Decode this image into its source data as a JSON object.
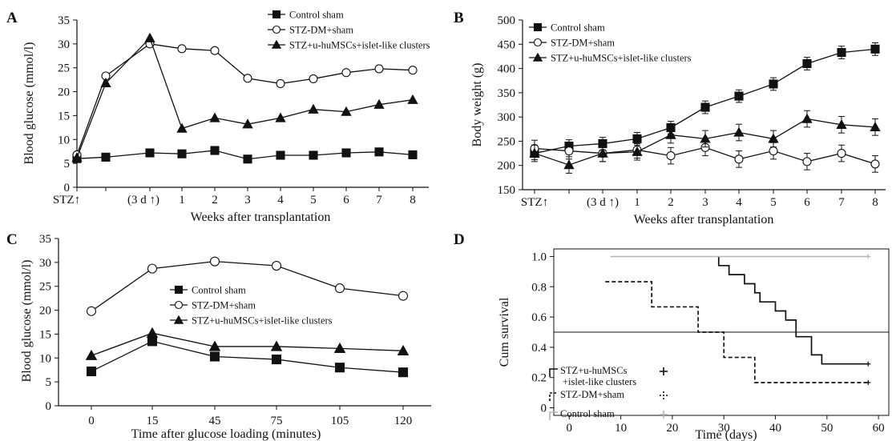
{
  "chart_data": [
    {
      "panel": "A",
      "type": "line",
      "ylabel": "Blood glucose (mmol/l)",
      "xlabel": "Weeks after transplantation",
      "ylim": [
        0,
        35
      ],
      "yticks": [
        0,
        5,
        10,
        15,
        20,
        25,
        30,
        35
      ],
      "categories": [
        "STZ↑",
        "",
        "(3 d ↑)",
        "1",
        "2",
        "3",
        "4",
        "5",
        "6",
        "7",
        "8"
      ],
      "legend_position": "top-right",
      "series": [
        {
          "name": "Control sham",
          "marker": "square",
          "values": [
            6.0,
            6.3,
            7.2,
            7.0,
            7.7,
            5.9,
            6.7,
            6.7,
            7.2,
            7.4,
            6.8
          ]
        },
        {
          "name": "STZ-DM+sham",
          "marker": "circle",
          "values": [
            6.8,
            23.3,
            30.0,
            29.0,
            28.6,
            22.8,
            21.7,
            22.7,
            24.0,
            24.8,
            24.5
          ]
        },
        {
          "name": "STZ+u-huMSCs+islet-like clusters",
          "marker": "triangle",
          "values": [
            6.2,
            21.8,
            31.2,
            12.3,
            14.5,
            13.2,
            14.5,
            16.3,
            15.8,
            17.3,
            18.3
          ]
        }
      ]
    },
    {
      "panel": "B",
      "type": "line",
      "ylabel": "Body weight (g)",
      "xlabel": "Weeks after transplantation",
      "ylim": [
        150,
        500
      ],
      "yticks": [
        150,
        200,
        250,
        300,
        350,
        400,
        450,
        500
      ],
      "categories": [
        "STZ↑",
        "",
        "(3 d ↑)",
        "1",
        "2",
        "3",
        "4",
        "5",
        "6",
        "7",
        "8"
      ],
      "legend_position": "top-left",
      "series": [
        {
          "name": "Control sham",
          "marker": "square",
          "values": [
            225,
            240,
            245,
            255,
            278,
            320,
            343,
            368,
            410,
            433,
            440
          ],
          "error": 13
        },
        {
          "name": "STZ-DM+sham",
          "marker": "circle",
          "values": [
            235,
            230,
            225,
            232,
            220,
            237,
            213,
            230,
            208,
            225,
            203
          ],
          "error": 17
        },
        {
          "name": "STZ+u-huMSCs+islet-like clusters",
          "marker": "triangle",
          "values": [
            225,
            201,
            225,
            228,
            263,
            255,
            268,
            255,
            296,
            284,
            279
          ],
          "error": 17
        }
      ]
    },
    {
      "panel": "C",
      "type": "line",
      "ylabel": "Blood glucose (mmol/l)",
      "xlabel": "Time after glucose loading (minutes)",
      "ylim": [
        0,
        35
      ],
      "yticks": [
        0,
        5,
        10,
        15,
        20,
        25,
        30,
        35
      ],
      "categories": [
        "0",
        "15",
        "45",
        "75",
        "105",
        "120"
      ],
      "legend_position": "center",
      "series": [
        {
          "name": "Control sham",
          "marker": "square",
          "values": [
            7.2,
            13.5,
            10.3,
            9.7,
            8.0,
            7.0
          ]
        },
        {
          "name": "STZ-DM+sham",
          "marker": "circle",
          "values": [
            19.8,
            28.7,
            30.2,
            29.3,
            24.6,
            23.0
          ]
        },
        {
          "name": "STZ+u-huMSCs+islet-like clusters",
          "marker": "triangle",
          "values": [
            10.5,
            15.2,
            12.4,
            12.4,
            12.0,
            11.5
          ]
        }
      ]
    },
    {
      "panel": "D",
      "type": "line",
      "ylabel": "Cum survival",
      "xlabel": "Time (days)",
      "xlim": [
        -3,
        62
      ],
      "ylim": [
        -0.05,
        1.05
      ],
      "xticks": [
        0,
        10,
        20,
        30,
        40,
        50,
        60
      ],
      "yticks": [
        0,
        0.2,
        0.4,
        0.6,
        0.8,
        1.0
      ],
      "ytick_labels": [
        "0",
        "0.2",
        "0.4",
        "0.6",
        "0.8",
        "1.0"
      ],
      "reference_line_y": 0.5,
      "legend_position": "bottom-left",
      "series": [
        {
          "name": "STZ+u-huMSCs\n+islet-like clusters",
          "style": "solid",
          "color": "#111111",
          "steps": [
            [
              29,
              1.0
            ],
            [
              29,
              0.94
            ],
            [
              31,
              0.94
            ],
            [
              31,
              0.88
            ],
            [
              34,
              0.88
            ],
            [
              34,
              0.82
            ],
            [
              36,
              0.82
            ],
            [
              36,
              0.76
            ],
            [
              37,
              0.76
            ],
            [
              37,
              0.7
            ],
            [
              40,
              0.7
            ],
            [
              40,
              0.64
            ],
            [
              42,
              0.64
            ],
            [
              42,
              0.58
            ],
            [
              44,
              0.58
            ],
            [
              44,
              0.47
            ],
            [
              47,
              0.47
            ],
            [
              47,
              0.35
            ],
            [
              49,
              0.35
            ],
            [
              49,
              0.29
            ],
            [
              58,
              0.29
            ]
          ]
        },
        {
          "name": "STZ-DM+sham",
          "style": "dashed",
          "color": "#111111",
          "steps": [
            [
              7,
              0.833
            ],
            [
              16,
              0.833
            ],
            [
              16,
              0.667
            ],
            [
              25,
              0.667
            ],
            [
              25,
              0.5
            ],
            [
              30,
              0.5
            ],
            [
              30,
              0.333
            ],
            [
              36,
              0.333
            ],
            [
              36,
              0.167
            ],
            [
              58,
              0.167
            ]
          ]
        },
        {
          "name": "Control sham",
          "style": "solid",
          "color": "#b5b5b5",
          "steps": [
            [
              8,
              1.0
            ],
            [
              58,
              1.0
            ]
          ]
        }
      ]
    }
  ]
}
